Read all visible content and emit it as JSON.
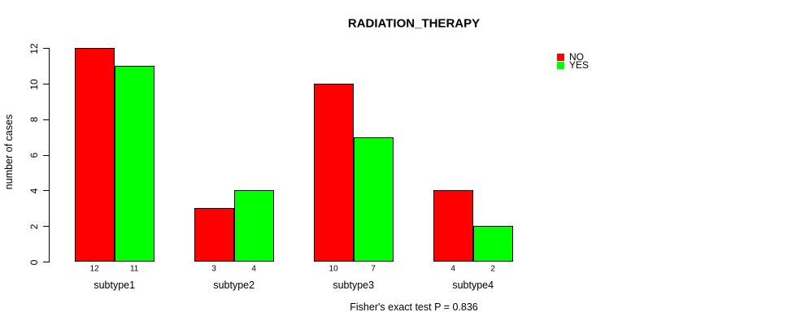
{
  "chart_data": {
    "type": "bar",
    "title": "RADIATION_THERAPY",
    "ylabel": "number of cases",
    "xlabel": "",
    "categories": [
      "subtype1",
      "subtype2",
      "subtype3",
      "subtype4"
    ],
    "series": [
      {
        "name": "NO",
        "color": "#ff0000",
        "values": [
          12,
          3,
          10,
          4
        ]
      },
      {
        "name": "YES",
        "color": "#00ff00",
        "values": [
          11,
          4,
          7,
          2
        ]
      }
    ],
    "ylim": [
      0,
      12
    ],
    "yticks": [
      0,
      2,
      4,
      6,
      8,
      10,
      12
    ],
    "grid": false,
    "legend_position": "top-right",
    "values_shown_under_bars": true,
    "annotation": "Fisher's exact test P = 0.836",
    "colors": {
      "no_series": "#ff0000",
      "yes_series": "#00ff00",
      "axis": "#000000",
      "background": "#ffffff",
      "bar_border": "#000000"
    }
  }
}
